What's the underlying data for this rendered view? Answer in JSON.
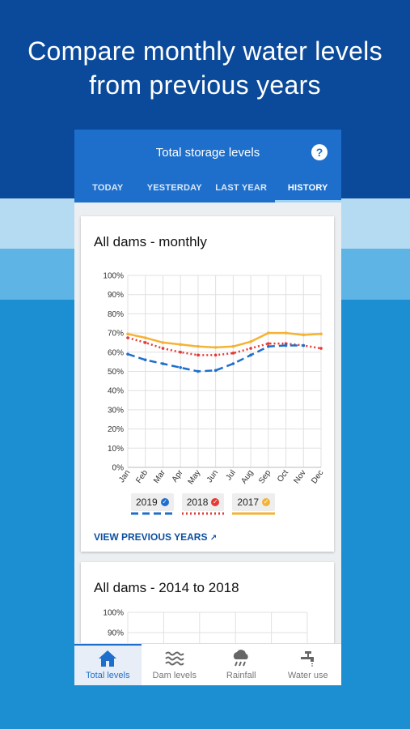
{
  "headline": {
    "line1": "Compare monthly water levels",
    "line2": "from previous years"
  },
  "header": {
    "title": "Total storage levels",
    "help_icon": "help-circle-icon"
  },
  "tabs": [
    {
      "label": "TODAY",
      "active": false
    },
    {
      "label": "YESTERDAY",
      "active": false
    },
    {
      "label": "LAST YEAR",
      "active": false
    },
    {
      "label": "HISTORY",
      "active": true
    }
  ],
  "card1": {
    "title": "All dams - monthly",
    "view_previous": "VIEW PREVIOUS YEARS"
  },
  "card2": {
    "title": "All dams - 2014 to 2018",
    "ticks": [
      "100%",
      "90%"
    ]
  },
  "legend": [
    {
      "label": "2019",
      "color": "#1e6fcb"
    },
    {
      "label": "2018",
      "color": "#e53935"
    },
    {
      "label": "2017",
      "color": "#f5b335"
    }
  ],
  "chart_data": {
    "type": "line",
    "title": "All dams - monthly",
    "categories": [
      "Jan",
      "Feb",
      "Mar",
      "Apr",
      "May",
      "Jun",
      "Jul",
      "Aug",
      "Sep",
      "Oct",
      "Nov",
      "Dec"
    ],
    "ylim": [
      0,
      100
    ],
    "ytick_labels": [
      "100%",
      "90%",
      "80%",
      "70%",
      "60%",
      "50%",
      "40%",
      "30%",
      "20%",
      "10%",
      "0%"
    ],
    "grid": true,
    "series": [
      {
        "name": "2019",
        "color": "#1e6fcb",
        "style": "dashed",
        "values": [
          59,
          56,
          54,
          52,
          50,
          50.5,
          54,
          58.5,
          63,
          63.5,
          63.5,
          null
        ]
      },
      {
        "name": "2018",
        "color": "#e53935",
        "style": "dotted",
        "values": [
          67.5,
          65,
          62,
          60,
          58.5,
          58.5,
          59.5,
          62,
          64.5,
          64.5,
          63.5,
          62
        ]
      },
      {
        "name": "2017",
        "color": "#f5b335",
        "style": "solid",
        "values": [
          69.5,
          67.5,
          65,
          64,
          63,
          62.5,
          63,
          65.5,
          70,
          70,
          69,
          69.5
        ]
      }
    ]
  },
  "bottom_nav": [
    {
      "label": "Total levels",
      "icon": "home-icon",
      "active": true
    },
    {
      "label": "Dam levels",
      "icon": "waves-icon",
      "active": false
    },
    {
      "label": "Rainfall",
      "icon": "rain-cloud-icon",
      "active": false
    },
    {
      "label": "Water use",
      "icon": "tap-icon",
      "active": false
    }
  ]
}
